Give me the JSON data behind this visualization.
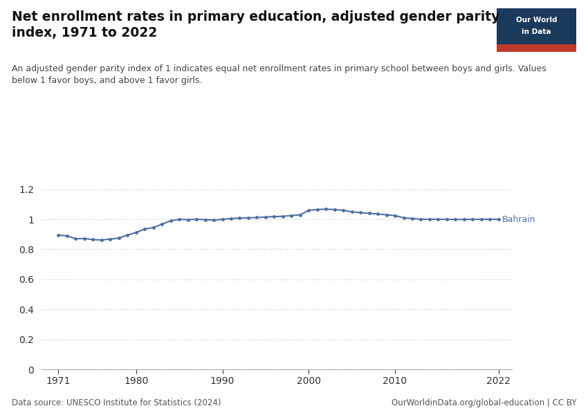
{
  "title_line1": "Net enrollment rates in primary education, adjusted gender parity",
  "title_line2": "index, 1971 to 2022",
  "subtitle": "An adjusted gender parity index of 1 indicates equal net enrollment rates in primary school between boys and girls. Values\nbelow 1 favor boys, and above 1 favor girls.",
  "data_source": "Data source: UNESCO Institute for Statistics (2024)",
  "url": "OurWorldinData.org/global-education | CC BY",
  "series_label": "Bahrain",
  "line_color": "#4d6fa3",
  "label_color": "#4d6fa3",
  "years": [
    1971,
    1972,
    1973,
    1974,
    1975,
    1976,
    1977,
    1978,
    1979,
    1980,
    1981,
    1982,
    1983,
    1984,
    1985,
    1986,
    1987,
    1988,
    1989,
    1990,
    1991,
    1992,
    1993,
    1994,
    1995,
    1996,
    1997,
    1998,
    1999,
    2000,
    2001,
    2002,
    2003,
    2004,
    2005,
    2006,
    2007,
    2008,
    2009,
    2010,
    2011,
    2012,
    2013,
    2014,
    2015,
    2016,
    2017,
    2018,
    2019,
    2020,
    2021,
    2022
  ],
  "values": [
    0.895,
    0.89,
    0.87,
    0.872,
    0.865,
    0.862,
    0.868,
    0.875,
    0.895,
    0.912,
    0.935,
    0.945,
    0.968,
    0.99,
    1.0,
    0.998,
    1.0,
    0.998,
    0.995,
    1.0,
    1.005,
    1.008,
    1.01,
    1.012,
    1.015,
    1.018,
    1.02,
    1.025,
    1.03,
    1.06,
    1.065,
    1.068,
    1.065,
    1.06,
    1.05,
    1.045,
    1.04,
    1.035,
    1.03,
    1.025,
    1.01,
    1.005,
    1.0,
    1.0,
    1.0,
    1.0,
    0.999,
    0.999,
    1.0,
    1.0,
    1.0,
    1.0
  ],
  "ylim": [
    0,
    1.3
  ],
  "yticks": [
    0,
    0.2,
    0.4,
    0.6,
    0.8,
    1.0,
    1.2
  ],
  "xticks": [
    1971,
    1980,
    1990,
    2000,
    2010,
    2022
  ],
  "background_color": "#ffffff",
  "grid_color": "#cccccc",
  "owid_box_color": "#1a3a5c",
  "owid_box_red": "#c0392b"
}
